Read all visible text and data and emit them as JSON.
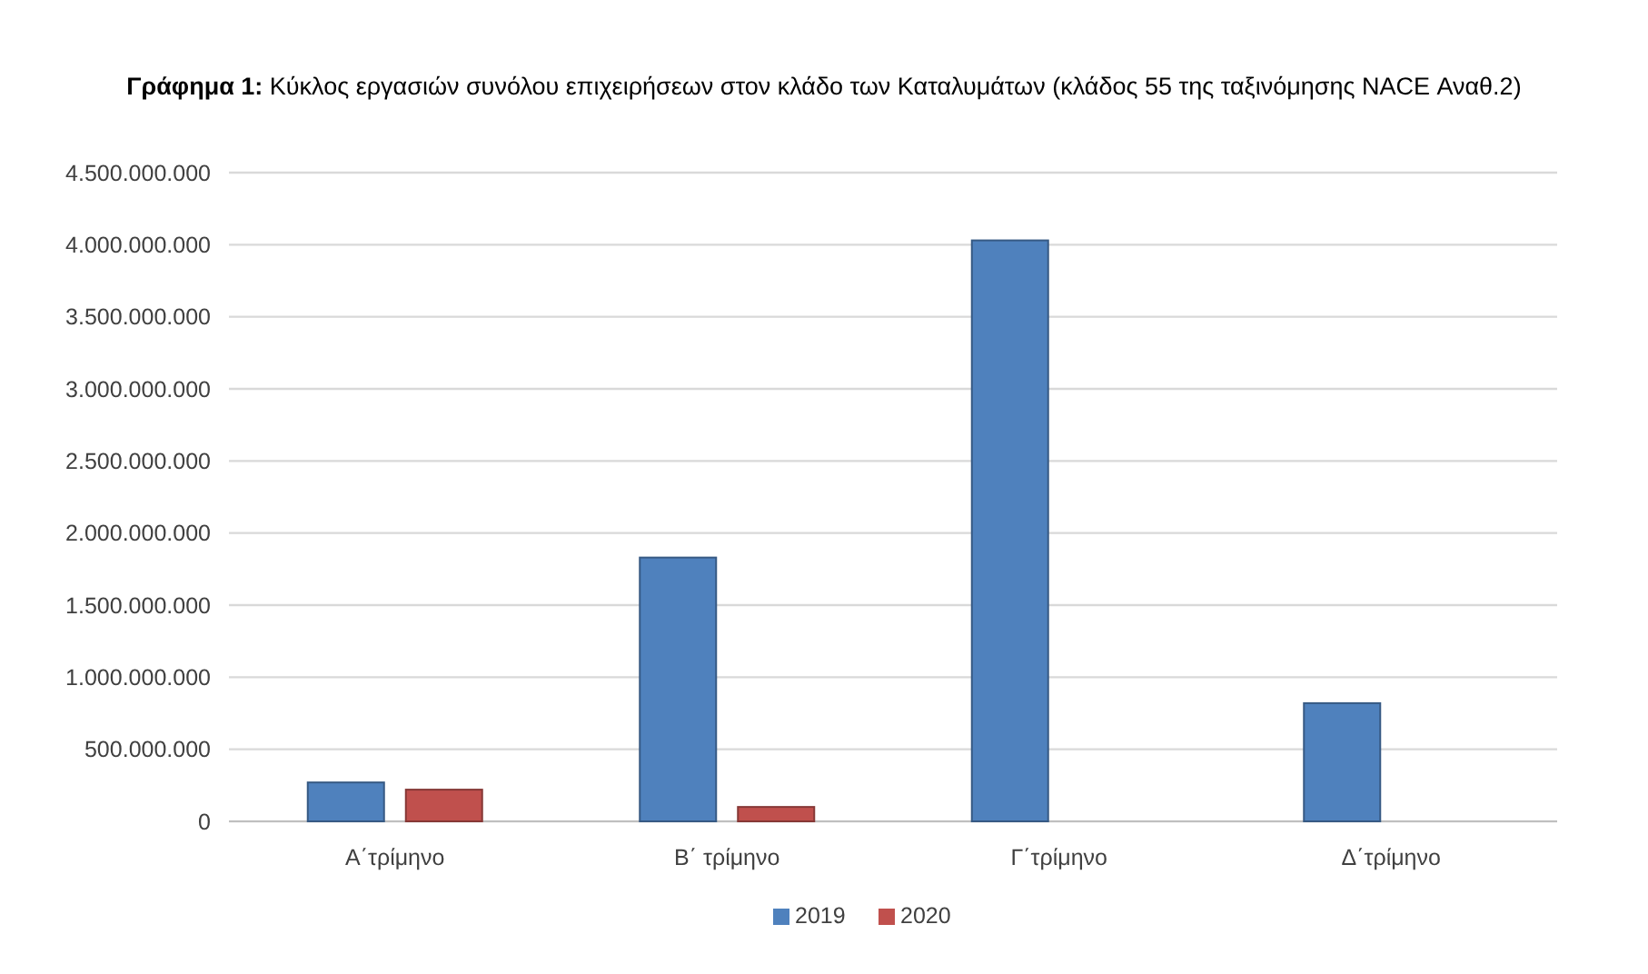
{
  "chart_data": {
    "type": "bar",
    "title": "Γράφημα 1: Κύκλος εργασιών συνόλου επιχειρήσεων στον κλάδο των Καταλυμάτων (κλάδος 55 της ταξινόμησης NACE Αναθ.2)",
    "categories": [
      "Α΄τρίμηνο",
      "Β΄ τρίμηνο",
      "Γ΄τρίμηνο",
      "Δ΄τρίμηνο"
    ],
    "series": [
      {
        "name": "2019",
        "color": "#4f81bd",
        "values": [
          270000000,
          1830000000,
          4030000000,
          820000000
        ]
      },
      {
        "name": "2020",
        "color": "#c0504d",
        "values": [
          220000000,
          100000000,
          null,
          null
        ]
      }
    ],
    "ylim": [
      0,
      4500000000
    ],
    "yticks": [
      {
        "value": 0,
        "label": "0"
      },
      {
        "value": 500000000,
        "label": "500.000.000"
      },
      {
        "value": 1000000000,
        "label": "1.000.000.000"
      },
      {
        "value": 1500000000,
        "label": "1.500.000.000"
      },
      {
        "value": 2000000000,
        "label": "2.000.000.000"
      },
      {
        "value": 2500000000,
        "label": "2.500.000.000"
      },
      {
        "value": 3000000000,
        "label": "3.000.000.000"
      },
      {
        "value": 3500000000,
        "label": "3.500.000.000"
      },
      {
        "value": 4000000000,
        "label": "4.000.000.000"
      },
      {
        "value": 4500000000,
        "label": "4.500.000.000"
      }
    ],
    "grid": true,
    "legend": "bottom"
  }
}
